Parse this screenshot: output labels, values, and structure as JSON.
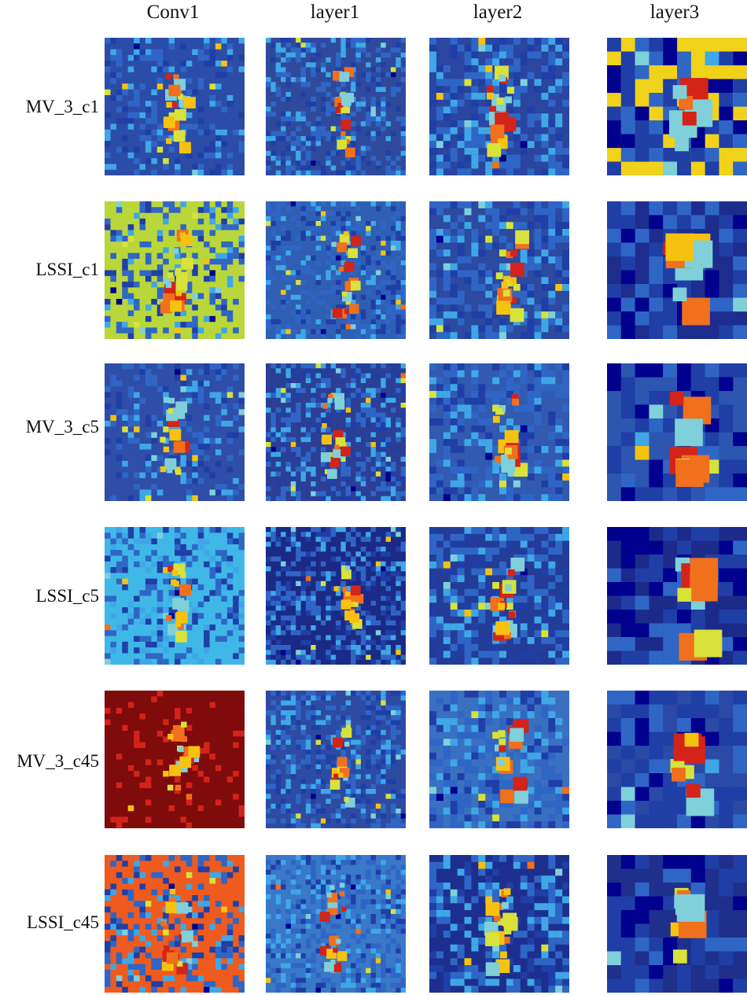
{
  "columns": [
    "Conv1",
    "layer1",
    "layer2",
    "layer3"
  ],
  "rows": [
    {
      "label": "MV_3_c1"
    },
    {
      "label": "LSSI_c1"
    },
    {
      "label": "MV_3_c5"
    },
    {
      "label": "LSSI_c5"
    },
    {
      "label": "MV_3_c45"
    },
    {
      "label": "LSSI_c45"
    }
  ],
  "colormap": [
    "#00008f",
    "#1f3fa6",
    "#2f66c6",
    "#3fa7e6",
    "#7fd0d8",
    "#d8e23a",
    "#f7c20f",
    "#f0701c",
    "#d42319",
    "#7f0b0b"
  ],
  "panels": [
    [
      "#2b4da8",
      "#2f4a9c",
      "#2a46a0",
      "#f1d21a"
    ],
    [
      "#b9d63a",
      "#2f5fb2",
      "#2b4aa0",
      "#1d2d8e"
    ],
    [
      "#2e4ea8",
      "#2a3f95",
      "#315ab0",
      "#2c56b0"
    ],
    [
      "#3fb8e8",
      "#1b2a86",
      "#233c98",
      "#1c2b8a"
    ],
    [
      "#7f0b0b",
      "#2d4ba2",
      "#3a70c0",
      "#2a4aa6"
    ],
    [
      "#ef5a1e",
      "#3a78c8",
      "#1d2f8e",
      "#1f2f8c"
    ]
  ]
}
